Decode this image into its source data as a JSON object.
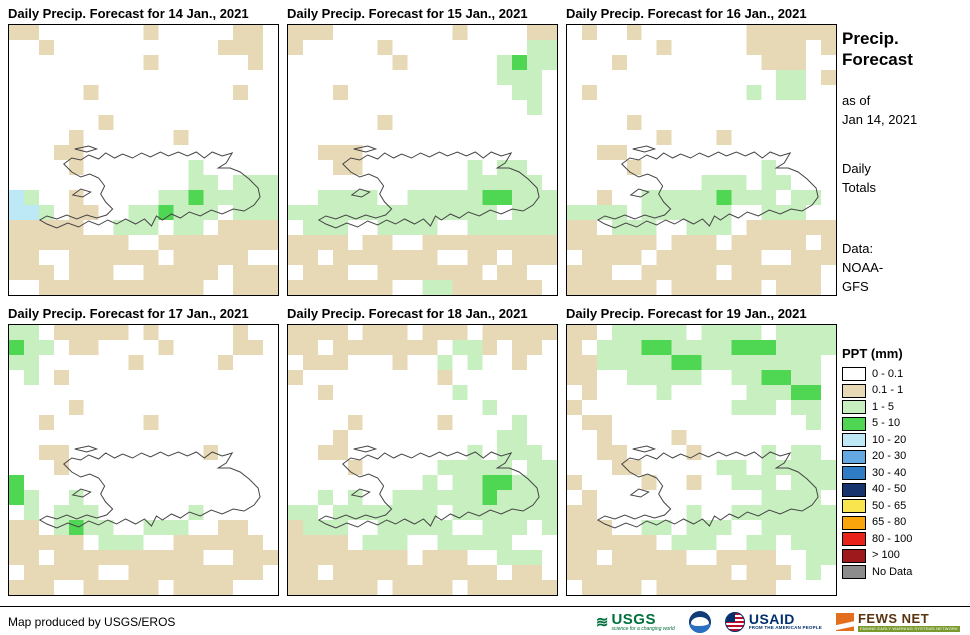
{
  "panels": [
    {
      "title": "Daily Precip. Forecast for 14 Jan., 2021",
      "grid": [
        "tt.......t.....tt.",
        "..t...........ttt.",
        ".........t......t.",
        "..................",
        ".....t.........t..",
        "..................",
        "......t...........",
        "....t......t......",
        "...tt.............",
        "....t.......g.....",
        "............gg.ggg",
        "bg..t.....ggGggggg",
        "bbg.tt..ggGggg.ggg",
        "ttttt..ggg.gg.tttt",
        "tttttttt..tttttttt",
        "tt..tttttt.ttttt..",
        "ttt.ttt..ttttt.ttt",
        "..ttttttttttt..ttt"
      ]
    },
    {
      "title": "Daily Precip. Forecast for 15 Jan., 2021",
      "grid": [
        "ttt........t....tt",
        "t.....t.........gg",
        ".......t......gGgg",
        "..............ggg.",
        "...t...........gg.",
        "................g.",
        "......t...........",
        "..................",
        "..ttt.............",
        "...tt.......g.gg..",
        "............ggggg.",
        "..gggg..gggggGGggg",
        "gggggggggggggg.ggg",
        ".ggg..gggg..gggggg",
        "tttt.tt..ttttttttt",
        "tt.ttttttt..tt.ttt",
        ".ttt..ttttttt.tt..",
        "ttttttt..ggtttttt."
      ]
    },
    {
      "title": "Daily Precip. Forecast for 16 Jan., 2021",
      "grid": [
        ".t..t.......tttttt",
        "......t.....tttt.t",
        "...t.........ttt..",
        "..............gg.t",
        ".t..........g.gg..",
        "..................",
        "....t.............",
        "......t...t.......",
        "..tt..............",
        "....t........g....",
        ".........ggg.gg...",
        "..t..gggggGggg.gg.",
        "gggg.gggggg..ggg..",
        "tt.ggg..ggg.tttttt",
        "tttttt.ttt.ttttt.t",
        ".tttt.ttttttt..ttt",
        "ttt..ttttt.tttttt.",
        "tttttt.tttttt.ttt."
      ]
    },
    {
      "title": "Daily Precip. Forecast for 17 Jan., 2021",
      "grid": [
        "gg.ttttt.t.....t..",
        "Ggg.tt....t....tt.",
        "gg......t.....t...",
        ".g.t..............",
        "..................",
        "....t.............",
        "..t......t........",
        "..................",
        "..tt.........t....",
        "...t..............",
        "G.................",
        "Gg..g.............",
        ".g.ggg......g.....",
        "tt.gGgg..ggg..tt..",
        "ttttt.ggg..tttttt.",
        "tt.tttttttttt..ttt",
        ".ttttt..ttttttttt.",
        "ttt..ttttt.tttt..."
      ]
    },
    {
      "title": "Daily Precip. Forecast for 18 Jan., 2021",
      "grid": [
        "tttt.ttt.ttt.ttttt",
        "tt.ttttttt.ggt.tt.",
        ".ttt...t..g.g..t..",
        "t.........t.......",
        "..t........g......",
        ".............g....",
        "....t.....t....g..",
        "...t..........gg..",
        "..tt........g.ggg.",
        "....t.....ggggg.gg",
        ".........g.ggGGggg",
        "..g.g..ggggggGgggg",
        "gg.ggggggg.ggggggg",
        "tggg..ggggg..ggg.g",
        "tttt.ggg..ggggg...",
        "tttttttt.ttt..ggg.",
        "tt.ttttttttttt.tt.",
        "tttttt.tttt.tttttt"
      ]
    },
    {
      "title": "Daily Precip. Forecast for 19 Jan., 2021",
      "grid": [
        "tt.ggggg.gggg.gggg",
        "t.gggGGggggGGGgggg",
        "ttgggggGGgggggggg.",
        "tt..ggggg..ggGGgg.",
        ".t....g.....gggGG.",
        "t..........ggg.gg.",
        ".tt.............g.",
        "..t....t..........",
        "..tt....t....g.gg.",
        "...tt.....gg.ggggg",
        "t....t..t..ggg.ggg",
        ".t...........gggg.",
        "tt......g..ggggggg",
        "ttt..gg.ggg..ggggg",
        "tttttt.ggg..gg.ggg",
        "tt.ttttt..tttt..gg",
        "ttttttttttt.ttt.g.",
        ".tttt.tttttttt...."
      ]
    }
  ],
  "map_colors": {
    ".": "#FFFFFF",
    "t": "#E8D9B6",
    "g": "#C8EFC0",
    "G": "#4FD653",
    "b": "#BDE9F6"
  },
  "sidebar": {
    "title": "Precip.\nForecast",
    "as_of": "as of\nJan 14, 2021",
    "totals": "Daily\nTotals",
    "data_source": "Data:\nNOAA-\nGFS"
  },
  "legend": {
    "title": "PPT (mm)",
    "items": [
      {
        "label": "0 - 0.1",
        "color": "#FFFFFF"
      },
      {
        "label": "0.1 - 1",
        "color": "#E8D9B6"
      },
      {
        "label": "1 - 5",
        "color": "#C8EFC0"
      },
      {
        "label": "5 - 10",
        "color": "#4FD653"
      },
      {
        "label": "10 - 20",
        "color": "#BDE9F6"
      },
      {
        "label": "20 - 30",
        "color": "#63A8E0"
      },
      {
        "label": "30 - 40",
        "color": "#2F7CC4"
      },
      {
        "label": "40 - 50",
        "color": "#16336E"
      },
      {
        "label": "50 - 65",
        "color": "#F9E64E"
      },
      {
        "label": "65 - 80",
        "color": "#FBA50C"
      },
      {
        "label": "80 - 100",
        "color": "#E8241A"
      },
      {
        "label": "> 100",
        "color": "#9E191C"
      },
      {
        "label": "No Data",
        "color": "#8C8C8C"
      }
    ]
  },
  "footer": {
    "credit": "Map produced by USGS/EROS",
    "logos": {
      "usgs_name": "USGS",
      "usgs_tagline": "science for a changing world",
      "usaid_name": "USAID",
      "usaid_tagline": "FROM THE AMERICAN PEOPLE",
      "fews_name": "FEWS NET",
      "fews_tagline": "FAMINE EARLY WARNING SYSTEMS NETWORK"
    }
  }
}
